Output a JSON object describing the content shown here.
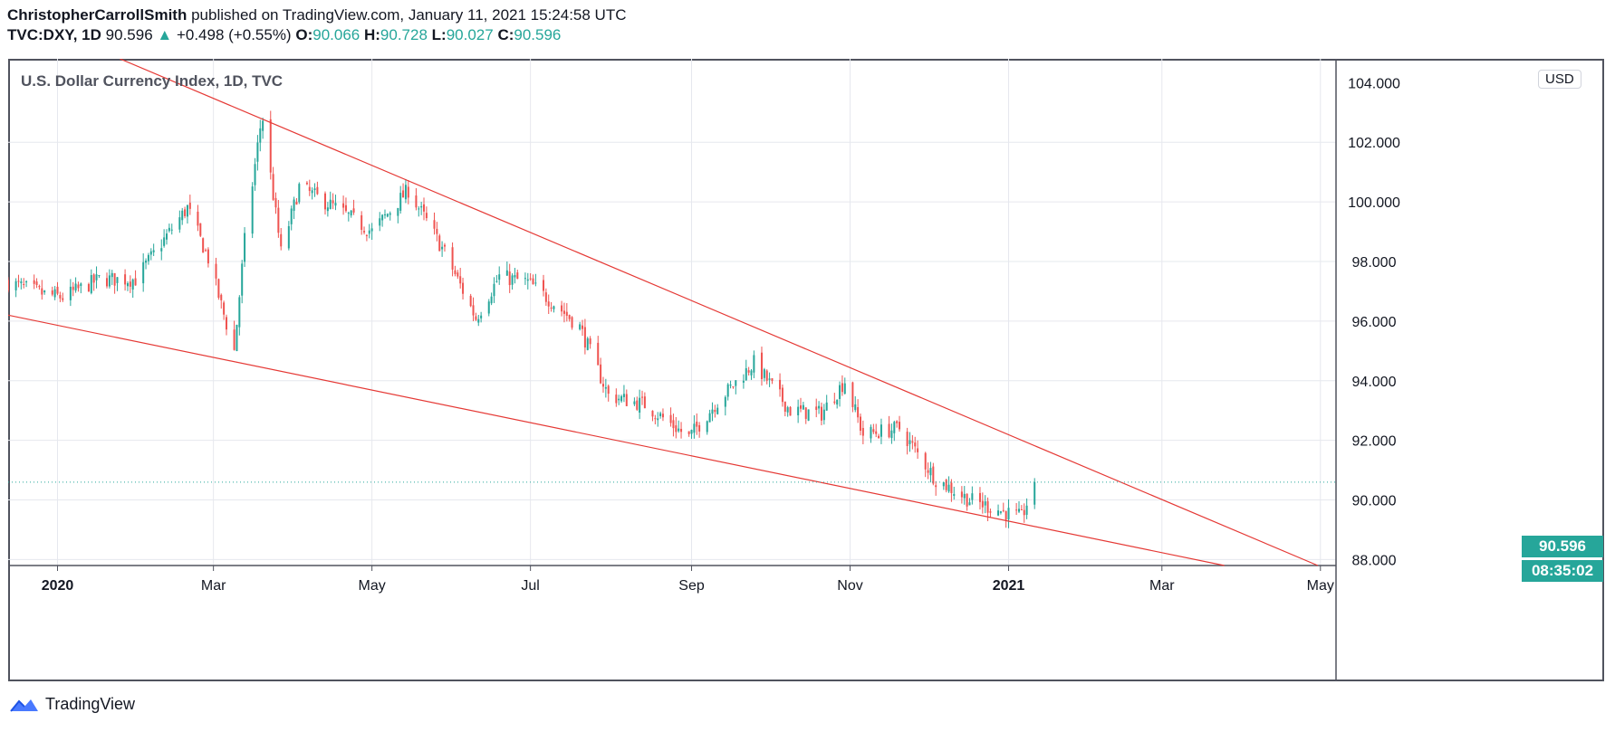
{
  "header": {
    "author": "ChristopherCarrollSmith",
    "published_text": "published on TradingView.com, January 11, 2021 15:24:58 UTC",
    "symbol": "TVC:DXY, 1D",
    "last": "90.596",
    "change_arrow": "▲",
    "change": "+0.498 (+0.55%)",
    "o_label": "O:",
    "o_value": "90.066",
    "h_label": "H:",
    "h_value": "90.728",
    "l_label": "L:",
    "l_value": "90.027",
    "c_label": "C:",
    "c_value": "90.596"
  },
  "chart_title": "U.S. Dollar Currency Index, 1D, TVC",
  "currency_badge": "USD",
  "price_tag": "90.596",
  "timer_tag": "08:35:02",
  "brand": "TradingView",
  "colors": {
    "up": "#26a69a",
    "down": "#ef5350",
    "trendline": "#e53935",
    "grid": "#e6e8ee",
    "price_line": "#26a69a"
  },
  "chart_data": {
    "type": "candlestick",
    "title": "U.S. Dollar Currency Index, 1D, TVC",
    "y_axis_ticks": [
      "88.000",
      "90.000",
      "92.000",
      "94.000",
      "96.000",
      "98.000",
      "100.000",
      "102.000"
    ],
    "x_axis_ticks": [
      "2020",
      "Mar",
      "May",
      "Jul",
      "Sep",
      "Nov",
      "2021",
      "Mar",
      "May"
    ],
    "ylim": [
      87.8,
      104.8
    ],
    "xlim": [
      "2019-12-13",
      "2021-05-07"
    ],
    "last_price": 90.596,
    "grid": true,
    "close_series": {
      "dates": [
        "2019-12-13",
        "2019-12-27",
        "2020-01-03",
        "2020-01-17",
        "2020-01-31",
        "2020-02-14",
        "2020-02-20",
        "2020-02-28",
        "2020-03-06",
        "2020-03-09",
        "2020-03-13",
        "2020-03-19",
        "2020-03-20",
        "2020-03-27",
        "2020-04-03",
        "2020-04-17",
        "2020-05-01",
        "2020-05-15",
        "2020-05-29",
        "2020-06-10",
        "2020-06-19",
        "2020-06-30",
        "2020-07-10",
        "2020-07-20",
        "2020-07-31",
        "2020-08-14",
        "2020-08-31",
        "2020-09-10",
        "2020-09-25",
        "2020-10-09",
        "2020-10-21",
        "2020-10-30",
        "2020-11-06",
        "2020-11-20",
        "2020-12-04",
        "2020-12-17",
        "2021-01-06",
        "2021-01-11"
      ],
      "values": [
        97.3,
        96.9,
        96.8,
        97.4,
        97.4,
        99.1,
        99.8,
        98.1,
        95.9,
        95.0,
        98.7,
        102.5,
        102.8,
        98.3,
        100.5,
        99.8,
        99.0,
        100.4,
        98.3,
        96.1,
        97.5,
        97.3,
        96.6,
        95.8,
        93.5,
        93.2,
        92.1,
        93.2,
        94.6,
        93.0,
        92.9,
        94.0,
        92.2,
        92.4,
        90.7,
        90.0,
        89.4,
        90.596
      ]
    },
    "trendlines": [
      {
        "name": "upper",
        "points": [
          {
            "x": "2020-01-25",
            "y": 104.8
          },
          {
            "x": "2021-04-30",
            "y": 87.8
          }
        ]
      },
      {
        "name": "lower",
        "points": [
          {
            "x": "2019-12-13",
            "y": 96.2
          },
          {
            "x": "2021-03-25",
            "y": 87.8
          }
        ]
      }
    ]
  }
}
